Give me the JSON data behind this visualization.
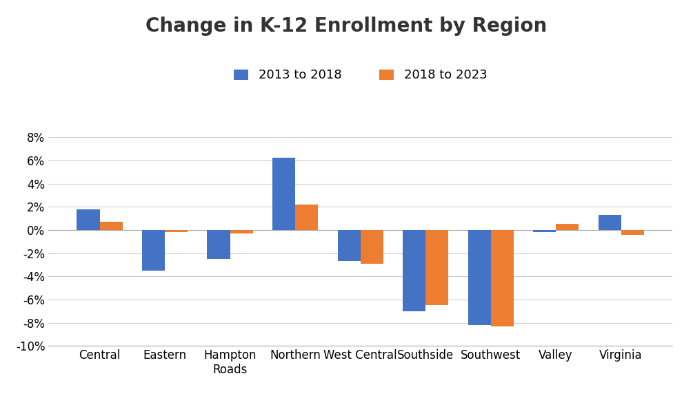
{
  "title": "Change in K-12 Enrollment by Region",
  "categories": [
    "Central",
    "Eastern",
    "Hampton\nRoads",
    "Northern",
    "West Central",
    "Southside",
    "Southwest",
    "Valley",
    "Virginia"
  ],
  "series": [
    {
      "label": "2013 to 2018",
      "color": "#4472C4",
      "values": [
        0.018,
        -0.035,
        -0.025,
        0.062,
        -0.027,
        -0.07,
        -0.082,
        -0.002,
        0.013
      ]
    },
    {
      "label": "2018 to 2023",
      "color": "#ED7D31",
      "values": [
        0.007,
        -0.002,
        -0.003,
        0.022,
        -0.029,
        -0.065,
        -0.083,
        0.005,
        -0.004
      ]
    }
  ],
  "ylim": [
    -0.1,
    0.1
  ],
  "yticks": [
    -0.1,
    -0.08,
    -0.06,
    -0.04,
    -0.02,
    0.0,
    0.02,
    0.04,
    0.06,
    0.08
  ],
  "background_color": "#ffffff",
  "grid_color": "#cccccc",
  "title_fontsize": 20,
  "legend_fontsize": 13,
  "tick_fontsize": 12,
  "bar_width": 0.35
}
